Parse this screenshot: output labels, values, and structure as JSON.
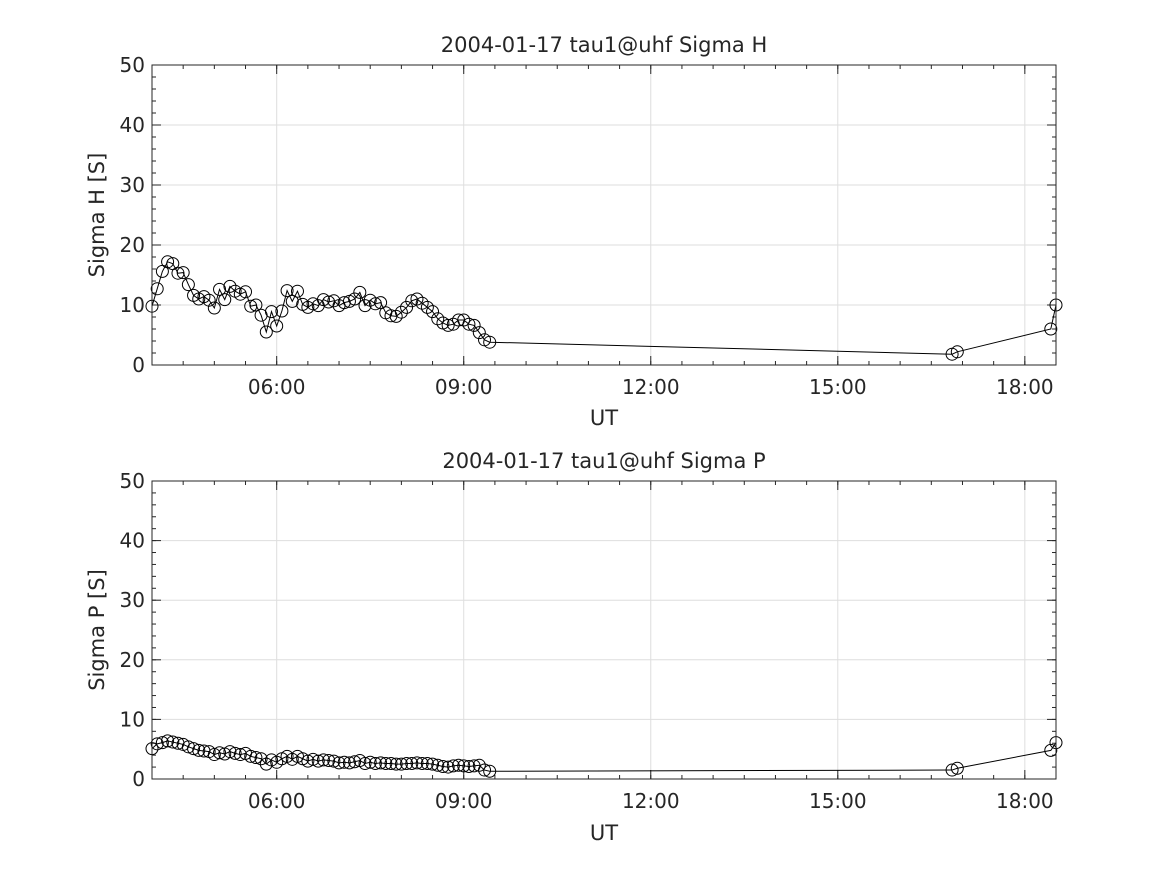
{
  "chart_data": [
    {
      "type": "line",
      "title": "2004-01-17  tau1@uhf Sigma H",
      "xlabel": "UT",
      "ylabel": "Sigma H [S]",
      "xlim": [
        "04:00",
        "18:30"
      ],
      "ylim": [
        0,
        50
      ],
      "grid": true,
      "marker": "open-circle",
      "color": "#000000",
      "x_ticks": [
        "06:00",
        "09:00",
        "12:00",
        "15:00",
        "18:00"
      ],
      "y_ticks": [
        "0",
        "10",
        "20",
        "30",
        "40",
        "50"
      ],
      "series": [
        {
          "x": [
            "04:00",
            "04:05",
            "04:10",
            "04:15",
            "04:20",
            "04:25",
            "04:30",
            "04:35",
            "04:40",
            "04:45",
            "04:50",
            "04:55",
            "05:00",
            "05:05",
            "05:10",
            "05:15",
            "05:20",
            "05:25",
            "05:30",
            "05:35",
            "05:40",
            "05:45",
            "05:50",
            "05:55",
            "06:00",
            "06:05",
            "06:10",
            "06:15",
            "06:20",
            "06:25",
            "06:30",
            "06:35",
            "06:40",
            "06:45",
            "06:50",
            "06:55",
            "07:00",
            "07:05",
            "07:10",
            "07:15",
            "07:20",
            "07:25",
            "07:30",
            "07:35",
            "07:40",
            "07:45",
            "07:50",
            "07:55",
            "08:00",
            "08:05",
            "08:10",
            "08:15",
            "08:20",
            "08:25",
            "08:30",
            "08:35",
            "08:40",
            "08:45",
            "08:50",
            "08:55",
            "09:00",
            "09:05",
            "09:10",
            "09:15",
            "09:20",
            "09:25",
            "16:50",
            "16:55",
            "18:25",
            "18:30"
          ],
          "y": [
            9.8,
            12.7,
            15.6,
            17.2,
            16.9,
            15.3,
            15.4,
            13.4,
            11.6,
            11.0,
            11.4,
            10.8,
            9.5,
            12.6,
            10.9,
            13.1,
            12.3,
            11.8,
            12.2,
            9.8,
            10.0,
            8.3,
            5.5,
            8.9,
            6.5,
            9.0,
            12.4,
            10.6,
            12.3,
            10.1,
            9.6,
            10.2,
            9.9,
            10.9,
            10.5,
            10.7,
            9.9,
            10.4,
            10.6,
            11.0,
            12.1,
            9.9,
            10.8,
            10.2,
            10.4,
            8.7,
            8.2,
            8.1,
            8.8,
            9.6,
            10.7,
            11.0,
            10.3,
            9.6,
            8.9,
            7.7,
            7.0,
            6.6,
            6.8,
            7.5,
            7.5,
            6.8,
            6.6,
            5.4,
            4.2,
            3.8,
            1.8,
            2.2,
            6.0,
            10.0
          ]
        }
      ]
    },
    {
      "type": "line",
      "title": "2004-01-17  tau1@uhf Sigma P",
      "xlabel": "UT",
      "ylabel": "Sigma P [S]",
      "xlim": [
        "04:00",
        "18:30"
      ],
      "ylim": [
        0,
        50
      ],
      "grid": true,
      "marker": "open-circle",
      "color": "#000000",
      "x_ticks": [
        "06:00",
        "09:00",
        "12:00",
        "15:00",
        "18:00"
      ],
      "y_ticks": [
        "0",
        "10",
        "20",
        "30",
        "40",
        "50"
      ],
      "series": [
        {
          "x": [
            "04:00",
            "04:05",
            "04:10",
            "04:15",
            "04:20",
            "04:25",
            "04:30",
            "04:35",
            "04:40",
            "04:45",
            "04:50",
            "04:55",
            "05:00",
            "05:05",
            "05:10",
            "05:15",
            "05:20",
            "05:25",
            "05:30",
            "05:35",
            "05:40",
            "05:45",
            "05:50",
            "05:55",
            "06:00",
            "06:05",
            "06:10",
            "06:15",
            "06:20",
            "06:25",
            "06:30",
            "06:35",
            "06:40",
            "06:45",
            "06:50",
            "06:55",
            "07:00",
            "07:05",
            "07:10",
            "07:15",
            "07:20",
            "07:25",
            "07:30",
            "07:35",
            "07:40",
            "07:45",
            "07:50",
            "07:55",
            "08:00",
            "08:05",
            "08:10",
            "08:15",
            "08:20",
            "08:25",
            "08:30",
            "08:35",
            "08:40",
            "08:45",
            "08:50",
            "08:55",
            "09:00",
            "09:05",
            "09:10",
            "09:15",
            "09:20",
            "09:25",
            "16:50",
            "16:55",
            "18:25",
            "18:30"
          ],
          "y": [
            5.1,
            5.9,
            6.1,
            6.4,
            6.2,
            6.0,
            5.8,
            5.4,
            5.1,
            4.8,
            4.7,
            4.6,
            4.1,
            4.4,
            4.2,
            4.6,
            4.3,
            4.1,
            4.3,
            3.8,
            3.6,
            3.4,
            2.5,
            3.2,
            2.8,
            3.4,
            3.8,
            3.3,
            3.8,
            3.4,
            3.0,
            3.3,
            3.0,
            3.2,
            3.1,
            3.0,
            2.7,
            2.8,
            2.7,
            2.9,
            3.1,
            2.6,
            2.8,
            2.6,
            2.7,
            2.6,
            2.6,
            2.5,
            2.5,
            2.6,
            2.6,
            2.7,
            2.6,
            2.6,
            2.5,
            2.3,
            2.1,
            2.0,
            2.2,
            2.3,
            2.2,
            2.1,
            2.2,
            2.3,
            1.5,
            1.3,
            1.5,
            1.8,
            4.8,
            6.1
          ]
        }
      ]
    }
  ]
}
